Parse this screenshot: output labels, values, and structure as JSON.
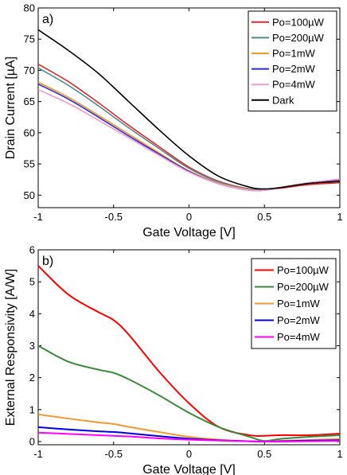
{
  "chart_data": [
    {
      "type": "line",
      "panel_label": "a)",
      "xlabel": "Gate Voltage [V]",
      "ylabel": "Drain Current [µA]",
      "xlim": [
        -1,
        1
      ],
      "ylim": [
        48,
        80
      ],
      "xticks": [
        -1,
        -0.5,
        0,
        0.5,
        1
      ],
      "xtick_labels": [
        "-1",
        "-0.5",
        "0",
        "0.5",
        "1"
      ],
      "yticks": [
        50,
        55,
        60,
        65,
        70,
        75,
        80
      ],
      "ytick_labels": [
        "50",
        "55",
        "60",
        "65",
        "70",
        "75",
        "80"
      ],
      "grid": false,
      "legend": "top-right",
      "x": [
        -1,
        -0.8,
        -0.6,
        -0.4,
        -0.2,
        0,
        0.2,
        0.4,
        0.5,
        0.6,
        0.8,
        1
      ],
      "series": [
        {
          "name": "Po=100µW",
          "color": "#e8262a",
          "values": [
            71.0,
            68.2,
            64.8,
            61.2,
            57.8,
            54.5,
            52.2,
            51.0,
            50.9,
            51.1,
            51.7,
            52.0
          ]
        },
        {
          "name": "Po=200µW",
          "color": "#4c8a8a",
          "values": [
            70.4,
            67.6,
            64.3,
            60.8,
            57.5,
            54.3,
            52.1,
            51.0,
            50.9,
            51.2,
            51.9,
            52.3
          ]
        },
        {
          "name": "Po=1mW",
          "color": "#f0992c",
          "values": [
            68.1,
            65.7,
            62.8,
            59.8,
            56.8,
            53.9,
            51.9,
            50.9,
            50.8,
            51.2,
            52.0,
            52.4
          ]
        },
        {
          "name": "Po=2mW",
          "color": "#2b2bd6",
          "values": [
            67.8,
            65.4,
            62.5,
            59.5,
            56.6,
            53.8,
            51.8,
            50.8,
            50.8,
            51.2,
            52.0,
            52.5
          ]
        },
        {
          "name": "Po=4mW",
          "color": "#f29ad8",
          "values": [
            66.9,
            64.7,
            62.0,
            59.2,
            56.4,
            53.7,
            51.8,
            50.8,
            50.8,
            51.2,
            52.0,
            52.6
          ]
        },
        {
          "name": "Dark",
          "color": "#000000",
          "values": [
            76.5,
            73.2,
            69.5,
            65.0,
            60.5,
            56.3,
            53.0,
            51.3,
            51.0,
            51.2,
            51.9,
            52.2
          ]
        }
      ]
    },
    {
      "type": "line",
      "panel_label": "b)",
      "xlabel": "Gate Voltage [V]",
      "ylabel": "External Responsivity [A/W]",
      "xlim": [
        -1,
        1
      ],
      "ylim": [
        -0.1,
        6
      ],
      "xticks": [
        -1,
        -0.5,
        0,
        0.5,
        1
      ],
      "xtick_labels": [
        "-1",
        "-0.5",
        "0",
        "0.5",
        "1"
      ],
      "yticks": [
        0,
        1,
        2,
        3,
        4,
        5,
        6
      ],
      "ytick_labels": [
        "0",
        "1",
        "2",
        "3",
        "4",
        "5",
        "6"
      ],
      "grid": false,
      "legend": "top-right",
      "x": [
        -1,
        -0.8,
        -0.6,
        -0.5,
        -0.4,
        -0.2,
        0,
        0.2,
        0.4,
        0.5,
        0.6,
        0.8,
        1
      ],
      "series": [
        {
          "name": "Po=100µW",
          "color": "#ff0000",
          "values": [
            5.5,
            4.6,
            4.05,
            3.8,
            3.35,
            2.2,
            1.2,
            0.45,
            0.2,
            0.18,
            0.2,
            0.2,
            0.25
          ]
        },
        {
          "name": "Po=200µW",
          "color": "#3a8a3a",
          "values": [
            3.0,
            2.5,
            2.25,
            2.15,
            1.95,
            1.45,
            0.9,
            0.45,
            0.15,
            0.02,
            0.08,
            0.15,
            0.2
          ]
        },
        {
          "name": "Po=1mW",
          "color": "#f0992c",
          "values": [
            0.85,
            0.72,
            0.6,
            0.55,
            0.46,
            0.3,
            0.15,
            0.06,
            0.01,
            0.0,
            0.02,
            0.05,
            0.08
          ]
        },
        {
          "name": "Po=2mW",
          "color": "#0000dd",
          "values": [
            0.45,
            0.38,
            0.32,
            0.3,
            0.26,
            0.17,
            0.09,
            0.04,
            0.01,
            0.0,
            0.01,
            0.03,
            0.04
          ]
        },
        {
          "name": "Po=4mW",
          "color": "#ff00ff",
          "values": [
            0.28,
            0.24,
            0.2,
            0.18,
            0.16,
            0.1,
            0.06,
            0.03,
            0.01,
            0.0,
            0.0,
            0.01,
            0.02
          ]
        }
      ]
    }
  ]
}
